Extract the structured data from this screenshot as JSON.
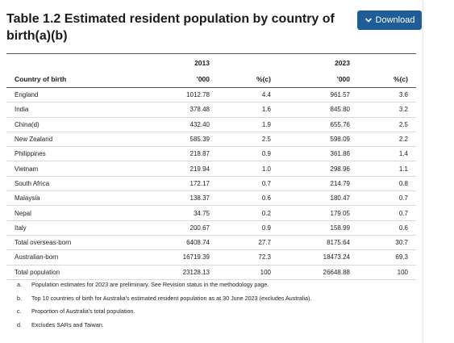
{
  "title": "Table 1.2 Estimated resident population by country of birth(a)(b)",
  "download_label": "Download",
  "table": {
    "year_headers": [
      "2013",
      "2023"
    ],
    "column_headers": [
      "Country of birth",
      "'000",
      "%(c)",
      "'000",
      "%(c)"
    ],
    "rows": [
      [
        "England",
        "1012.78",
        "4.4",
        "961.57",
        "3.6"
      ],
      [
        "India",
        "378.48",
        "1.6",
        "845.80",
        "3.2"
      ],
      [
        "China(d)",
        "432.40",
        "1.9",
        "655.76",
        "2.5"
      ],
      [
        "New Zealand",
        "585.39",
        "2.5",
        "598.09",
        "2.2"
      ],
      [
        "Philippines",
        "218.87",
        "0.9",
        "361.86",
        "1.4"
      ],
      [
        "Vietnam",
        "219.94",
        "1.0",
        "298.96",
        "1.1"
      ],
      [
        "South Africa",
        "172.17",
        "0.7",
        "214.79",
        "0.8"
      ],
      [
        "Malaysia",
        "138.37",
        "0.6",
        "180.47",
        "0.7"
      ],
      [
        "Nepal",
        "34.75",
        "0.2",
        "179.05",
        "0.7"
      ],
      [
        "Italy",
        "200.67",
        "0.9",
        "158.99",
        "0.6"
      ],
      [
        "Total overseas-born",
        "6408.74",
        "27.7",
        "8175.64",
        "30.7"
      ],
      [
        "Australian-born",
        "16719.39",
        "72.3",
        "18473.24",
        "69.3"
      ],
      [
        "Total population",
        "23128.13",
        "100",
        "26648.88",
        "100"
      ]
    ]
  },
  "footnotes": [
    {
      "marker": "a.",
      "text": "Population estimates for 2023 are preliminary. See Revision status in the methodology page."
    },
    {
      "marker": "b.",
      "text": "Top 10 countries of birth for Australia's estimated resident population as at 30 June 2023 (excludes Australia)."
    },
    {
      "marker": "c.",
      "text": "Proportion of Australia's total population."
    },
    {
      "marker": "d.",
      "text": "Excludes SARs and Taiwan."
    }
  ]
}
